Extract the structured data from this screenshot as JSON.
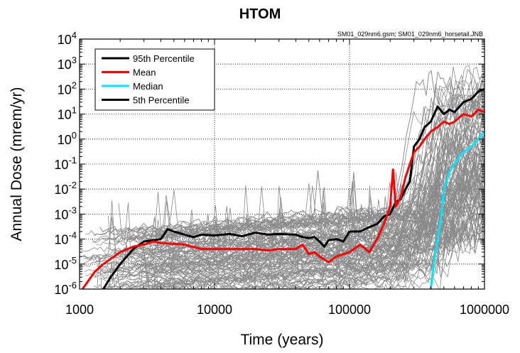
{
  "chart_data": {
    "type": "line",
    "title": "HTOM",
    "source_note": "SM01_029nm6.gsm; SM01_029nm6_horsetail.JNB",
    "xlabel": "Time (years)",
    "ylabel": "Annual Dose (mrem/yr)",
    "xscale": "log",
    "yscale": "log",
    "xlim": [
      1000,
      1000000
    ],
    "ylim": [
      1e-06,
      10000
    ],
    "x_ticks": [
      {
        "value": 1000,
        "label": "1000"
      },
      {
        "value": 10000,
        "label": "10000"
      },
      {
        "value": 100000,
        "label": "100000"
      },
      {
        "value": 1000000,
        "label": "1000000"
      }
    ],
    "y_ticks": [
      {
        "value": 10000,
        "base": "10",
        "exp": "4"
      },
      {
        "value": 1000,
        "base": "10",
        "exp": "3"
      },
      {
        "value": 100,
        "base": "10",
        "exp": "2"
      },
      {
        "value": 10,
        "base": "10",
        "exp": "1"
      },
      {
        "value": 1,
        "base": "10",
        "exp": "0"
      },
      {
        "value": 0.1,
        "base": "10",
        "exp": "-1"
      },
      {
        "value": 0.01,
        "base": "10",
        "exp": "-2"
      },
      {
        "value": 0.001,
        "base": "10",
        "exp": "-3"
      },
      {
        "value": 0.0001,
        "base": "10",
        "exp": "-4"
      },
      {
        "value": 1e-05,
        "base": "10",
        "exp": "-5"
      },
      {
        "value": 1e-06,
        "base": "10",
        "exp": "-6"
      }
    ],
    "grid": true,
    "legend_position": "top-left",
    "realizations_color": "#8a8a8a",
    "series": [
      {
        "name": "95th Percentile",
        "color": "#000000",
        "points": [
          [
            1500,
            1e-06
          ],
          [
            1700,
            3e-06
          ],
          [
            2000,
            1e-05
          ],
          [
            2500,
            4e-05
          ],
          [
            3000,
            8e-05
          ],
          [
            4000,
            0.0001
          ],
          [
            4500,
            0.00025
          ],
          [
            5000,
            0.0002
          ],
          [
            6000,
            0.00015
          ],
          [
            7000,
            0.00012
          ],
          [
            8000,
            0.00015
          ],
          [
            10000,
            0.00014
          ],
          [
            13000,
            0.00016
          ],
          [
            16000,
            0.00013
          ],
          [
            20000,
            0.00018
          ],
          [
            25000,
            0.00015
          ],
          [
            30000,
            0.00016
          ],
          [
            40000,
            0.00015
          ],
          [
            45000,
            0.00012
          ],
          [
            50000,
            0.00011
          ],
          [
            55000,
            0.00012
          ],
          [
            60000,
            8e-05
          ],
          [
            65000,
            5e-05
          ],
          [
            70000,
            9e-05
          ],
          [
            80000,
            0.0001
          ],
          [
            90000,
            8e-05
          ],
          [
            100000,
            0.0002
          ],
          [
            120000,
            0.0002
          ],
          [
            140000,
            0.0003
          ],
          [
            160000,
            0.0004
          ],
          [
            180000,
            0.0008
          ],
          [
            200000,
            0.001
          ],
          [
            220000,
            0.003
          ],
          [
            240000,
            0.004
          ],
          [
            260000,
            0.01
          ],
          [
            280000,
            0.02
          ],
          [
            300000,
            0.5
          ],
          [
            330000,
            1
          ],
          [
            360000,
            3
          ],
          [
            400000,
            5
          ],
          [
            450000,
            20
          ],
          [
            500000,
            10
          ],
          [
            550000,
            15
          ],
          [
            600000,
            12
          ],
          [
            700000,
            30
          ],
          [
            800000,
            40
          ],
          [
            900000,
            80
          ],
          [
            1000000,
            100
          ]
        ]
      },
      {
        "name": "Mean",
        "color": "#ff0000",
        "points": [
          [
            1050,
            1e-06
          ],
          [
            1300,
            5e-06
          ],
          [
            1500,
            1e-05
          ],
          [
            2000,
            3e-05
          ],
          [
            2500,
            5e-05
          ],
          [
            3000,
            6e-05
          ],
          [
            3500,
            8e-05
          ],
          [
            4000,
            7e-05
          ],
          [
            6000,
            6e-05
          ],
          [
            8000,
            4e-05
          ],
          [
            10000,
            4e-05
          ],
          [
            15000,
            4e-05
          ],
          [
            20000,
            4e-05
          ],
          [
            25000,
            3.5e-05
          ],
          [
            30000,
            4e-05
          ],
          [
            40000,
            4e-05
          ],
          [
            45000,
            6e-05
          ],
          [
            50000,
            2.5e-05
          ],
          [
            55000,
            3e-05
          ],
          [
            60000,
            2e-05
          ],
          [
            70000,
            1.2e-05
          ],
          [
            80000,
            2e-05
          ],
          [
            100000,
            3e-05
          ],
          [
            120000,
            6e-05
          ],
          [
            140000,
            3e-05
          ],
          [
            160000,
            0.0001
          ],
          [
            180000,
            0.0004
          ],
          [
            200000,
            0.002
          ],
          [
            210000,
            0.06
          ],
          [
            220000,
            0.002
          ],
          [
            240000,
            0.005
          ],
          [
            260000,
            0.03
          ],
          [
            280000,
            0.1
          ],
          [
            300000,
            0.3
          ],
          [
            330000,
            0.5
          ],
          [
            360000,
            1
          ],
          [
            400000,
            2
          ],
          [
            450000,
            3
          ],
          [
            500000,
            5
          ],
          [
            550000,
            4
          ],
          [
            600000,
            5
          ],
          [
            700000,
            10
          ],
          [
            800000,
            8
          ],
          [
            900000,
            15
          ],
          [
            1000000,
            12
          ]
        ]
      },
      {
        "name": "Median",
        "color": "#00e5ff",
        "points": [
          [
            400000,
            1e-06
          ],
          [
            420000,
            1e-05
          ],
          [
            450000,
            0.0001
          ],
          [
            480000,
            0.001
          ],
          [
            500000,
            0.01
          ],
          [
            550000,
            0.05
          ],
          [
            600000,
            0.1
          ],
          [
            650000,
            0.2
          ],
          [
            700000,
            0.3
          ],
          [
            800000,
            0.5
          ],
          [
            900000,
            1
          ],
          [
            1000000,
            2
          ]
        ]
      },
      {
        "name": "5th Percentile",
        "color": "#000000",
        "points": []
      }
    ]
  }
}
